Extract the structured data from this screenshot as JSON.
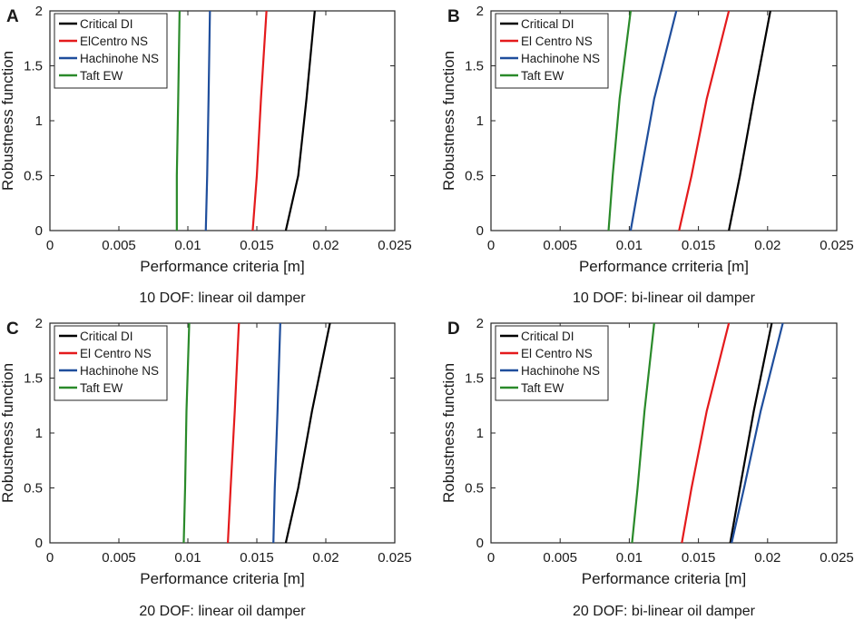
{
  "chart_data": [
    {
      "type": "line",
      "panel": "A",
      "caption": "10 DOF: linear oil damper",
      "xlabel": "Performance criteria [m]",
      "ylabel": "Robustness function",
      "xlim": [
        0,
        0.025
      ],
      "ylim": [
        0,
        2
      ],
      "xticks": [
        "0",
        "0.005",
        "0.01",
        "0.015",
        "0.02",
        "0.025"
      ],
      "yticks": [
        "0",
        "0.5",
        "1",
        "1.5",
        "2"
      ],
      "grid": false,
      "legend": "top-left",
      "series": [
        {
          "name": "Critical DI",
          "color": "#000000",
          "x": [
            0.0171,
            0.018,
            0.0186,
            0.0192
          ],
          "y": [
            0,
            0.5,
            1.2,
            2
          ]
        },
        {
          "name": "ElCentro NS",
          "color": "#e41a1c",
          "x": [
            0.0147,
            0.015,
            0.0153,
            0.0157
          ],
          "y": [
            0,
            0.5,
            1.2,
            2
          ]
        },
        {
          "name": "Hachinohe NS",
          "color": "#1f4e9c",
          "x": [
            0.0113,
            0.0114,
            0.0115,
            0.0116
          ],
          "y": [
            0,
            0.5,
            1.2,
            2
          ]
        },
        {
          "name": "Taft EW",
          "color": "#2a8a2a",
          "x": [
            0.0092,
            0.0092,
            0.0093,
            0.0094
          ],
          "y": [
            0,
            0.5,
            1.2,
            2
          ]
        }
      ]
    },
    {
      "type": "line",
      "panel": "B",
      "caption": "10 DOF: bi-linear oil damper",
      "xlabel": "Performance crriteria [m]",
      "ylabel": "Robustness function",
      "xlim": [
        0,
        0.025
      ],
      "ylim": [
        0,
        2
      ],
      "xticks": [
        "0",
        "0.005",
        "0.01",
        "0.015",
        "0.02",
        "0.025"
      ],
      "yticks": [
        "0",
        "0.5",
        "1",
        "1.5",
        "2"
      ],
      "grid": false,
      "legend": "top-left",
      "series": [
        {
          "name": "Critical DI",
          "color": "#000000",
          "x": [
            0.0172,
            0.018,
            0.019,
            0.0202
          ],
          "y": [
            0,
            0.5,
            1.2,
            2
          ]
        },
        {
          "name": "El Centro NS",
          "color": "#e41a1c",
          "x": [
            0.0136,
            0.0145,
            0.0156,
            0.0172
          ],
          "y": [
            0,
            0.5,
            1.2,
            2
          ]
        },
        {
          "name": "Hachinohe NS",
          "color": "#1f4e9c",
          "x": [
            0.0101,
            0.0108,
            0.0118,
            0.0134
          ],
          "y": [
            0,
            0.5,
            1.2,
            2
          ]
        },
        {
          "name": "Taft EW",
          "color": "#2a8a2a",
          "x": [
            0.0085,
            0.0088,
            0.0093,
            0.0101
          ],
          "y": [
            0,
            0.5,
            1.2,
            2
          ]
        }
      ]
    },
    {
      "type": "line",
      "panel": "C",
      "caption": "20 DOF: linear oil damper",
      "xlabel": "Performance criteria [m]",
      "ylabel": "Robustness function",
      "xlim": [
        0,
        0.025
      ],
      "ylim": [
        0,
        2
      ],
      "xticks": [
        "0",
        "0.005",
        "0.01",
        "0.015",
        "0.02",
        "0.025"
      ],
      "yticks": [
        "0",
        "0.5",
        "1",
        "1.5",
        "2"
      ],
      "grid": false,
      "legend": "top-left",
      "series": [
        {
          "name": "Critical DI",
          "color": "#000000",
          "x": [
            0.0171,
            0.018,
            0.019,
            0.0203
          ],
          "y": [
            0,
            0.5,
            1.2,
            2
          ]
        },
        {
          "name": "El Centro NS",
          "color": "#e41a1c",
          "x": [
            0.0129,
            0.0131,
            0.0134,
            0.0137
          ],
          "y": [
            0,
            0.5,
            1.2,
            2
          ]
        },
        {
          "name": "Hachinohe NS",
          "color": "#1f4e9c",
          "x": [
            0.0162,
            0.0163,
            0.0165,
            0.0167
          ],
          "y": [
            0,
            0.5,
            1.2,
            2
          ]
        },
        {
          "name": "Taft EW",
          "color": "#2a8a2a",
          "x": [
            0.0097,
            0.0098,
            0.0099,
            0.0101
          ],
          "y": [
            0,
            0.5,
            1.2,
            2
          ]
        }
      ]
    },
    {
      "type": "line",
      "panel": "D",
      "caption": "20 DOF: bi-linear oil damper",
      "xlabel": "Performance criteria [m]",
      "ylabel": "Robustness function",
      "xlim": [
        0,
        0.025
      ],
      "ylim": [
        0,
        2
      ],
      "xticks": [
        "0",
        "0.005",
        "0.01",
        "0.015",
        "0.02",
        "0.025"
      ],
      "yticks": [
        "0",
        "0.5",
        "1",
        "1.5",
        "2"
      ],
      "grid": false,
      "legend": "top-left",
      "series": [
        {
          "name": "Critical DI",
          "color": "#000000",
          "x": [
            0.0173,
            0.018,
            0.019,
            0.0203
          ],
          "y": [
            0,
            0.5,
            1.2,
            2
          ]
        },
        {
          "name": "El Centro NS",
          "color": "#e41a1c",
          "x": [
            0.0138,
            0.0145,
            0.0156,
            0.0172
          ],
          "y": [
            0,
            0.5,
            1.2,
            2
          ]
        },
        {
          "name": "Hachinohe NS",
          "color": "#1f4e9c",
          "x": [
            0.0174,
            0.0183,
            0.0195,
            0.0211
          ],
          "y": [
            0,
            0.5,
            1.2,
            2
          ]
        },
        {
          "name": "Taft EW",
          "color": "#2a8a2a",
          "x": [
            0.0102,
            0.0106,
            0.0111,
            0.0118
          ],
          "y": [
            0,
            0.5,
            1.2,
            2
          ]
        }
      ]
    }
  ]
}
